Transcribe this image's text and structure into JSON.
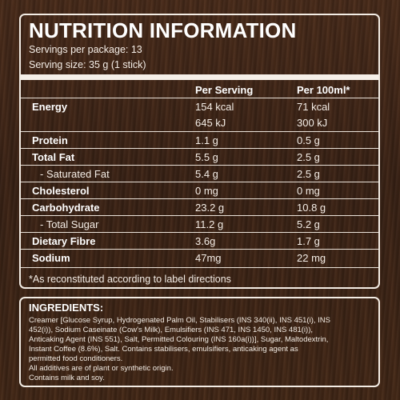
{
  "nutrition": {
    "title": "NUTRITION INFORMATION",
    "servings_per_package": "Servings per package: 13",
    "serving_size": "Serving size: 35 g (1 stick)",
    "columns": {
      "per_serving": "Per Serving",
      "per_100ml": "Per 100ml*"
    },
    "rows": [
      {
        "name": "Energy",
        "per_serving": "154 kcal",
        "per_100ml": "71 kcal"
      },
      {
        "name": "",
        "per_serving": "645 kJ",
        "per_100ml": "300 kJ"
      },
      {
        "name": "Protein",
        "per_serving": "1.1 g",
        "per_100ml": "0.5 g"
      },
      {
        "name": "Total Fat",
        "per_serving": "5.5 g",
        "per_100ml": "2.5 g"
      },
      {
        "name": "- Saturated Fat",
        "per_serving": "5.4 g",
        "per_100ml": "2.5 g"
      },
      {
        "name": "Cholesterol",
        "per_serving": "0 mg",
        "per_100ml": "0 mg"
      },
      {
        "name": "Carbohydrate",
        "per_serving": "23.2 g",
        "per_100ml": "10.8 g"
      },
      {
        "name": "- Total Sugar",
        "per_serving": "11.2 g",
        "per_100ml": "5.2 g"
      },
      {
        "name": "Dietary Fibre",
        "per_serving": "3.6g",
        "per_100ml": "1.7 g"
      },
      {
        "name": "Sodium",
        "per_serving": "47mg",
        "per_100ml": "22 mg"
      }
    ],
    "footnote": "*As reconstituted according to label directions"
  },
  "ingredients": {
    "heading": "INGREDIENTS:",
    "lines": [
      "Creamer [Glucose Syrup, Hydrogenated Palm Oil, Stabilisers (INS 340(ii), INS 451(i), INS",
      "452(i)), Sodium Caseinate (Cow's Milk), Emulsifiers (INS 471, INS 1450, INS 481(i)),",
      "Anticaking Agent (INS 551), Salt, Permitted Colouring (INS 160a(i))], Sugar, Maltodextrin,",
      "Instant Coffee (8.6%), Salt. Contains stabilisers, emulsifiers, anticaking agent as",
      "permitted food conditioners.",
      "All additives are of plant or synthetic origin.",
      "Contains milk and soy."
    ]
  },
  "colors": {
    "background": "#3e2516",
    "text": "#f4ede6",
    "border": "#f3ece4"
  }
}
